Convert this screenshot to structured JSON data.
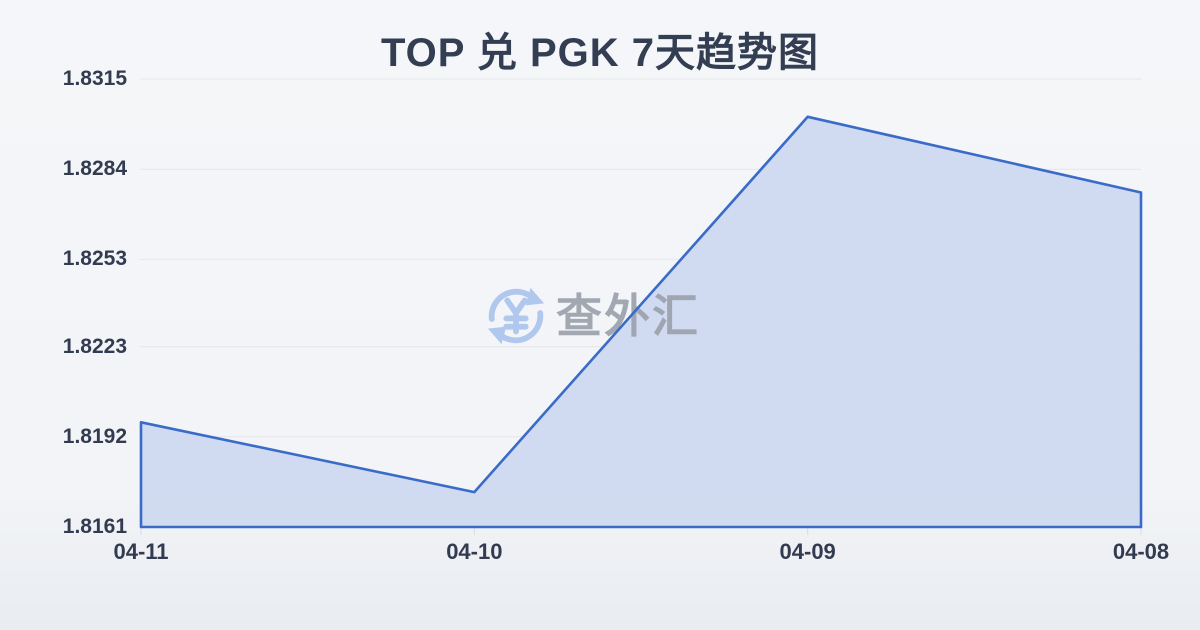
{
  "title": "TOP 兑 PGK 7天趋势图",
  "watermark": {
    "text": "查外汇",
    "icon": "currency-exchange-icon",
    "icon_color": "#a9c3ee",
    "text_color": "#9aa0ab"
  },
  "chart_data": {
    "type": "area",
    "title": "TOP 兑 PGK 7天趋势图",
    "x": [
      "04-11",
      "04-10",
      "04-09",
      "04-08"
    ],
    "series": [
      {
        "name": "TOP/PGK",
        "values": [
          1.8197,
          1.8173,
          1.8302,
          1.8276
        ]
      }
    ],
    "xlabel": "",
    "ylabel": "",
    "ylim": [
      1.8161,
      1.8315
    ],
    "yticks": [
      1.8161,
      1.8192,
      1.8223,
      1.8253,
      1.8284,
      1.8315
    ],
    "ytick_labels": [
      "1.8161",
      "1.8192",
      "1.8223",
      "1.8253",
      "1.8284",
      "1.8315"
    ],
    "grid": true,
    "legend": false,
    "line_color": "#3a6bc8",
    "fill_color": "#ccd8f0",
    "grid_color": "#e4e6eb",
    "tick_color": "#d8dbe1",
    "label_color": "#323b4f"
  }
}
